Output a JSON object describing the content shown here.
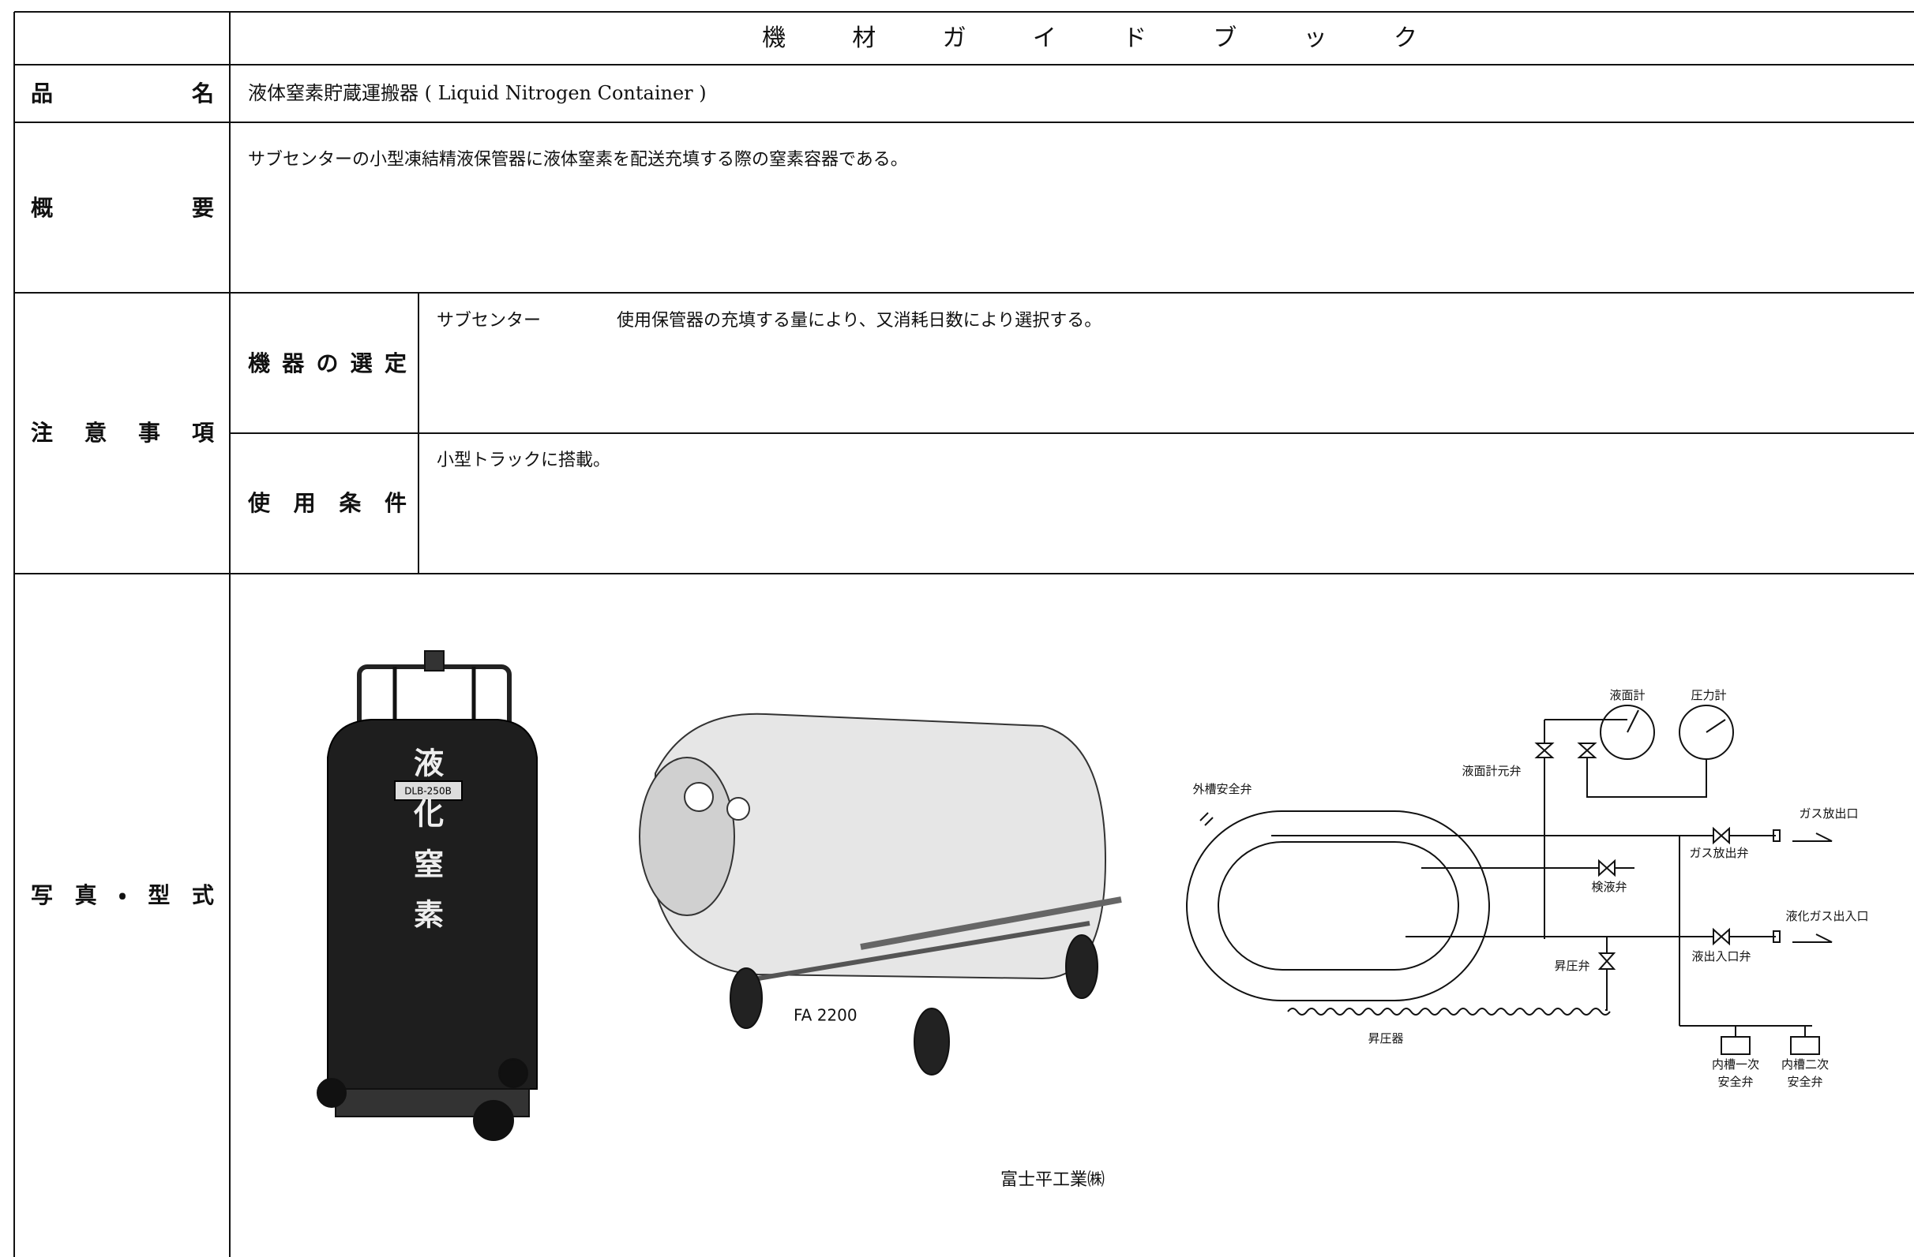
{
  "header": {
    "title": "機材ガイドブック"
  },
  "product": {
    "label": "品名",
    "value": "液体窒素貯蔵運搬器 ( Liquid Nitrogen Container )"
  },
  "overview": {
    "label": "概要",
    "value": "サブセンターの小型凍結精液保管器に液体窒素を配送充填する際の窒素容器である。"
  },
  "notes": {
    "label": "注意事項",
    "items": [
      {
        "label": "機器の選定",
        "subject": "サブセンター",
        "value": "使用保管器の充填する量により、又消耗日数により選択する。"
      },
      {
        "label": "使用条件",
        "value": "小型トラックに搭載。"
      }
    ]
  },
  "photos": {
    "label": "写真・型式",
    "container_text": "液化窒素",
    "model_1": "DLB-250B",
    "model_2": "FA 2200",
    "maker": "富士平工業㈱",
    "diagram": {
      "level_gauge": "液面計",
      "pressure_gauge": "圧力計",
      "level_gauge_valve": "液面計元弁",
      "outer_safety_valve": "外槽安全弁",
      "gas_outlet": "ガス放出口",
      "gas_release_valve": "ガス放出弁",
      "check_valve": "検液弁",
      "liquid_gas_port": "液化ガス出入口",
      "pressure_valve": "昇圧弁",
      "liquid_port_valve": "液出入口弁",
      "pressurizer": "昇圧器",
      "inner_safety_1": [
        "内槽一次",
        "安全弁"
      ],
      "inner_safety_2": [
        "内槽二次",
        "安全弁"
      ]
    }
  }
}
